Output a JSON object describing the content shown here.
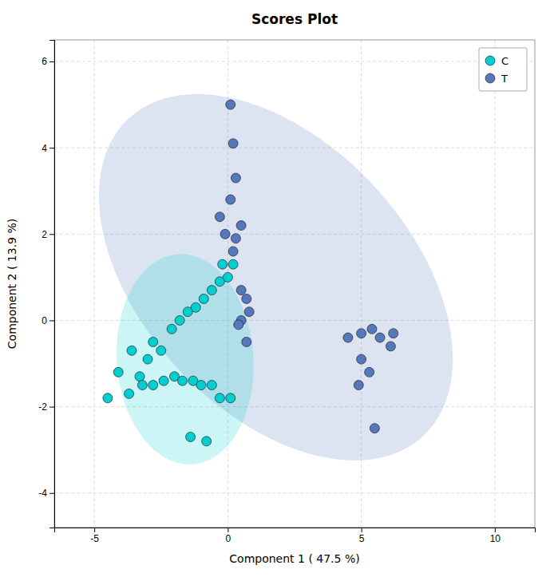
{
  "chart_data": {
    "type": "scatter",
    "title": "Scores Plot",
    "xlabel": "Component 1 ( 47.5 %)",
    "ylabel": "Component 2 ( 13.9 %)",
    "xlim": [
      -6.5,
      11.5
    ],
    "ylim": [
      -4.8,
      6.5
    ],
    "xticks": [
      -5,
      0,
      5,
      10
    ],
    "yticks": [
      -4,
      -2,
      0,
      2,
      4,
      6
    ],
    "grid": true,
    "legend": "upper right",
    "series": [
      {
        "name": "C",
        "color": "#00CED1",
        "x": [
          -4.5,
          -3.7,
          -4.1,
          -3.3,
          -3.6,
          -3.0,
          -2.8,
          -2.5,
          -3.2,
          -2.8,
          -2.4,
          -2.0,
          -1.7,
          -1.3,
          -1.0,
          -0.6,
          -0.3,
          0.1,
          -2.1,
          -1.8,
          -1.5,
          -1.2,
          -0.9,
          -0.6,
          -0.3,
          0.0,
          -0.2,
          0.2,
          -1.4,
          -0.8
        ],
        "values": [
          -1.8,
          -1.7,
          -1.2,
          -1.3,
          -0.7,
          -0.9,
          -0.5,
          -0.7,
          -1.5,
          -1.5,
          -1.4,
          -1.3,
          -1.4,
          -1.4,
          -1.5,
          -1.5,
          -1.8,
          -1.8,
          -0.2,
          0.0,
          0.2,
          0.3,
          0.5,
          0.7,
          0.9,
          1.0,
          1.3,
          1.3,
          -2.7,
          -2.8
        ],
        "ellipse": {
          "center_x": -1.6,
          "center_y": -0.9,
          "width": 5.2,
          "height": 4.8,
          "angle": -25
        }
      },
      {
        "name": "T",
        "color": "#5577BB",
        "x": [
          0.1,
          0.2,
          0.3,
          0.1,
          -0.3,
          -0.1,
          0.3,
          0.5,
          0.2,
          0.5,
          0.7,
          0.8,
          0.5,
          0.4,
          0.7,
          4.5,
          5.0,
          5.4,
          5.7,
          6.1,
          6.2,
          5.0,
          5.3,
          4.9,
          5.5
        ],
        "values": [
          5.0,
          4.1,
          3.3,
          2.8,
          2.4,
          2.0,
          1.9,
          2.2,
          1.6,
          0.7,
          0.5,
          0.2,
          0.0,
          -0.1,
          -0.5,
          -0.4,
          -0.3,
          -0.2,
          -0.4,
          -0.6,
          -0.3,
          -0.9,
          -1.2,
          -1.5,
          -2.5
        ],
        "ellipse": {
          "center_x": 1.8,
          "center_y": 1.0,
          "width": 14.0,
          "height": 7.2,
          "angle": -22
        }
      }
    ]
  }
}
